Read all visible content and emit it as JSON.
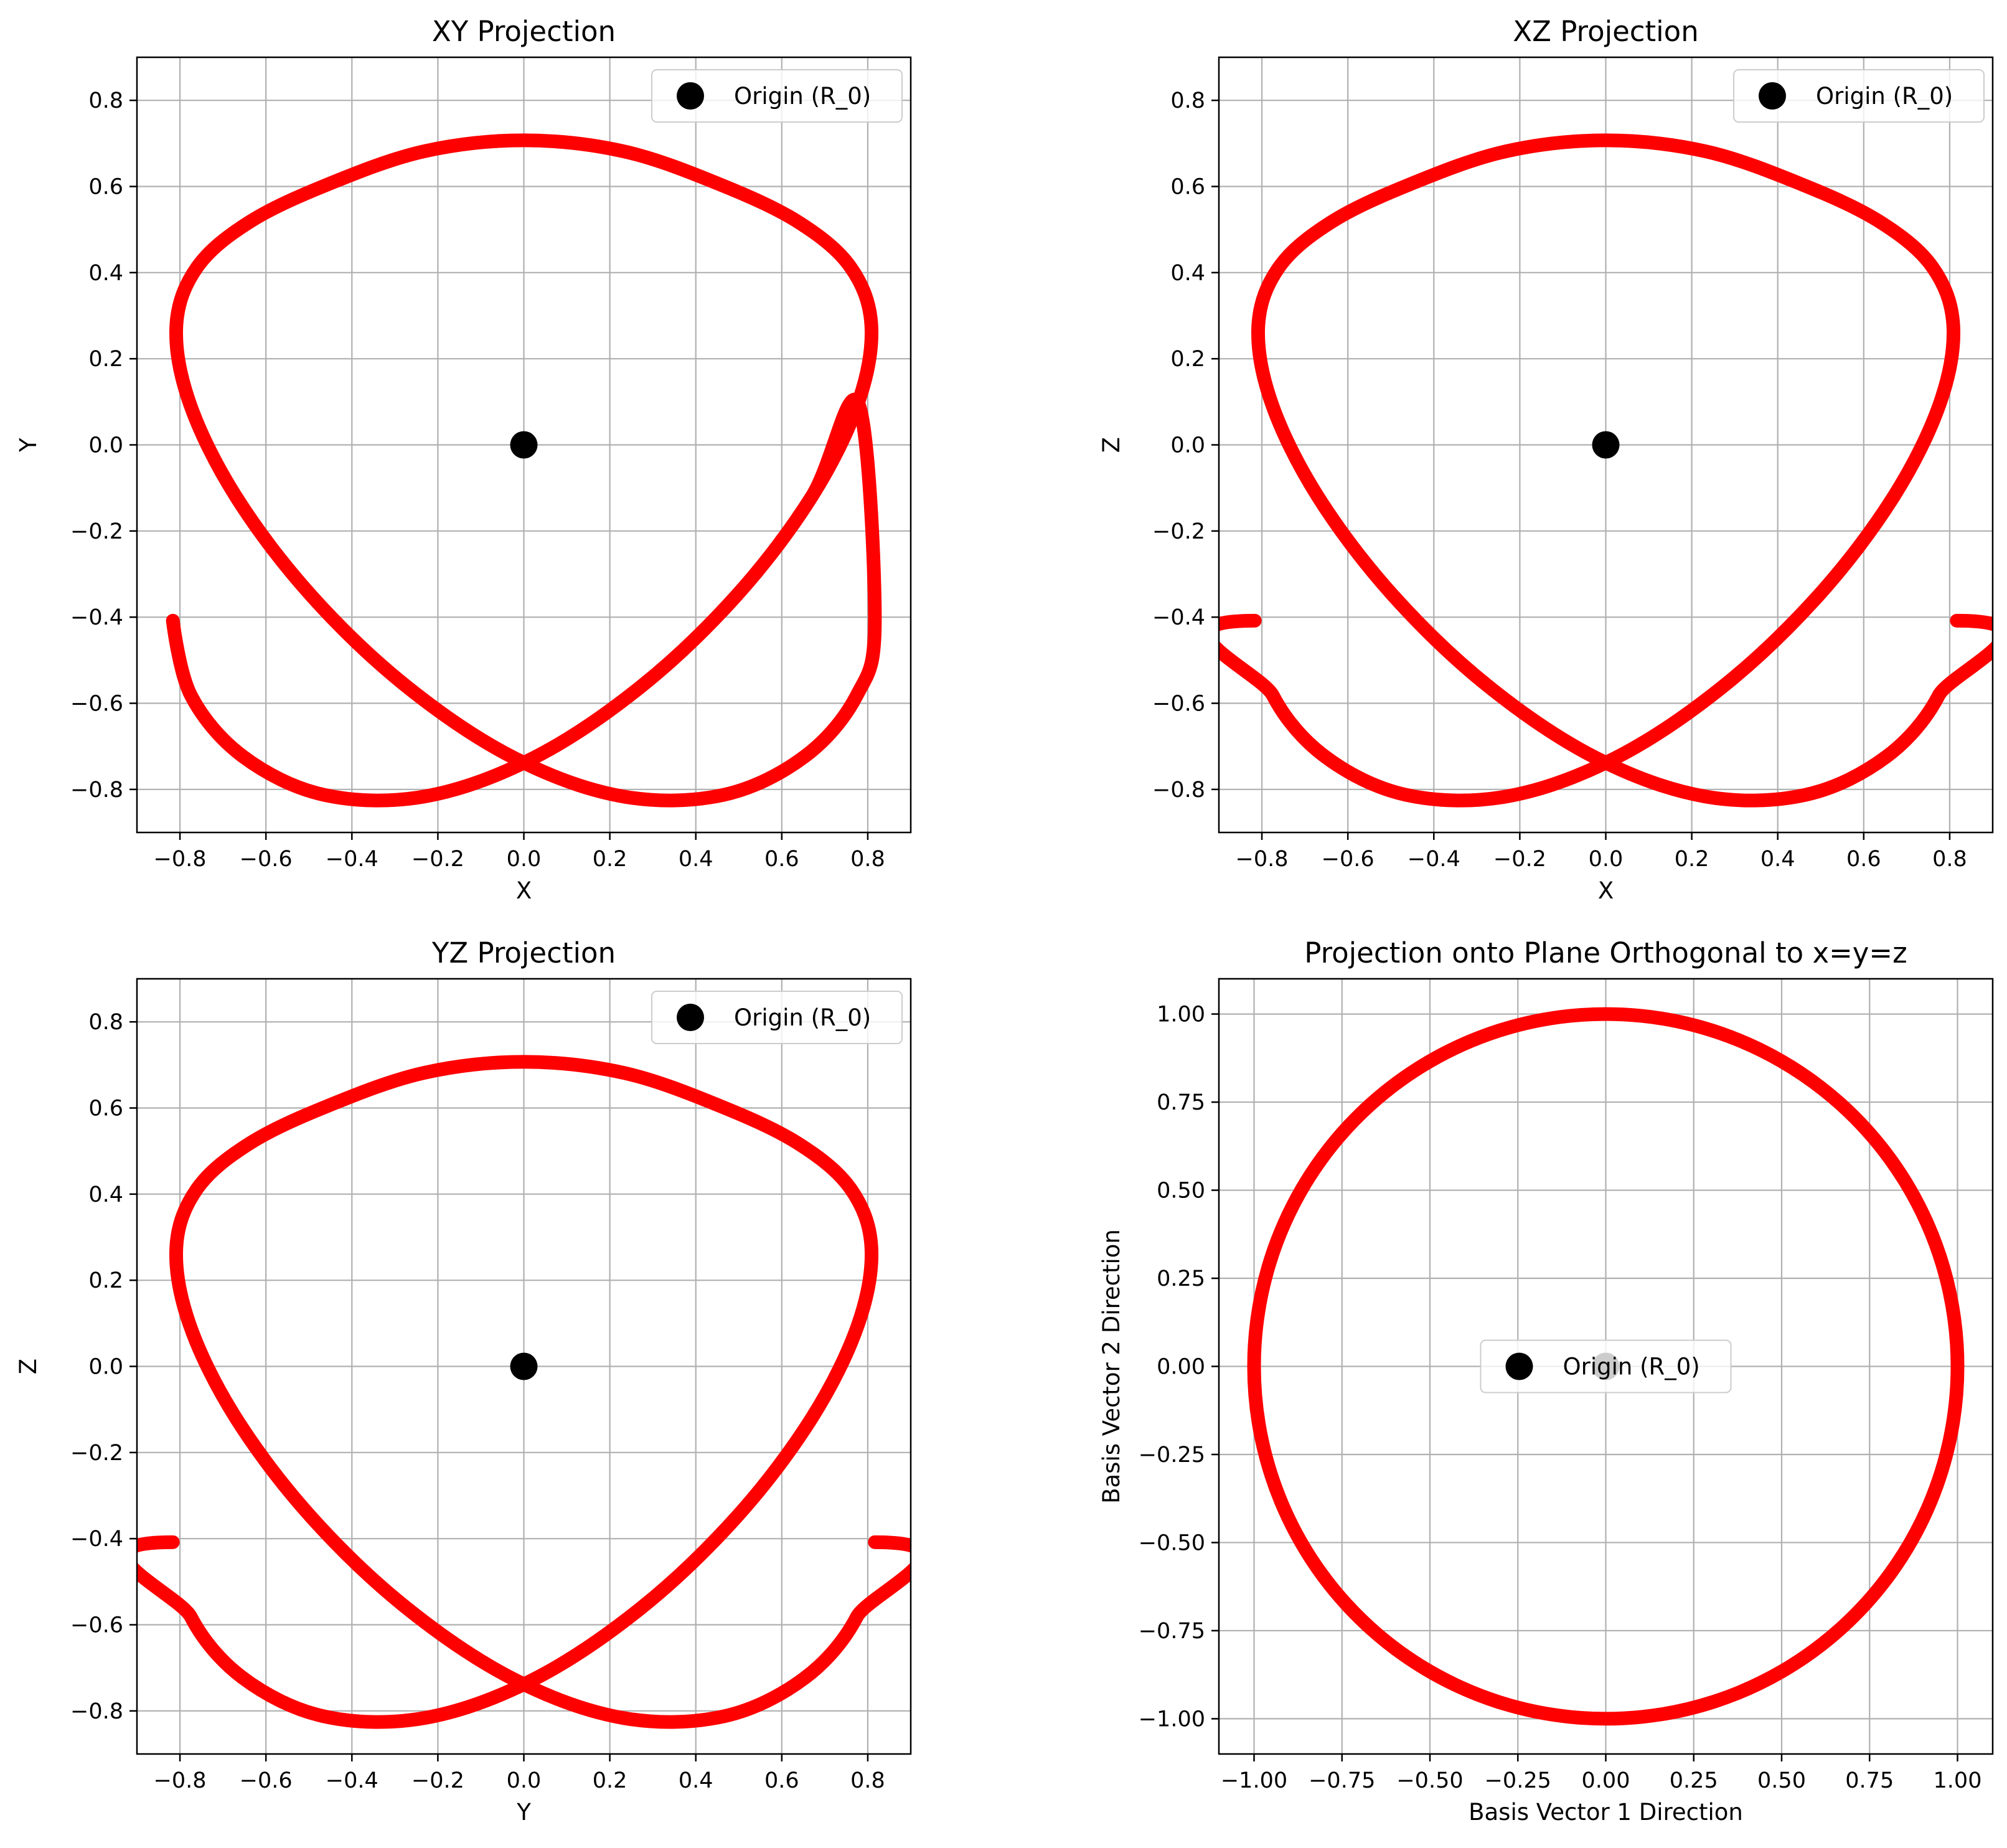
{
  "colors": {
    "curve": "#ff0000",
    "origin": "#000000",
    "grid": "#b0b0b0",
    "axes": "#000000"
  },
  "chart_data": [
    {
      "type": "line",
      "title": "XY Projection",
      "xlabel": "X",
      "ylabel": "Y",
      "xlim": [
        -0.9,
        0.9
      ],
      "ylim": [
        -0.9,
        0.9
      ],
      "grid": true,
      "legend_position": "top-right",
      "xticks": [
        -0.8,
        -0.6,
        -0.4,
        -0.2,
        0.0,
        0.2,
        0.4,
        0.6,
        0.8
      ],
      "yticks": [
        -0.8,
        -0.6,
        -0.4,
        -0.2,
        0.0,
        0.2,
        0.4,
        0.6,
        0.8
      ],
      "xtick_labels": [
        "−0.8",
        "−0.6",
        "−0.4",
        "−0.2",
        "0.0",
        "0.2",
        "0.4",
        "0.6",
        "0.8"
      ],
      "ytick_labels": [
        "−0.8",
        "−0.6",
        "−0.4",
        "−0.2",
        "0.0",
        "0.2",
        "0.4",
        "0.6",
        "0.8"
      ],
      "series": [
        {
          "kind": "line",
          "x": [
            0.8165,
            0.7746,
            0.6533,
            0.4653,
            0.2315,
            -0.0208,
            -0.2716,
            -0.4957,
            -0.6701,
            -0.7776,
            -0.8083,
            -0.7595,
            -0.6374,
            -0.4552,
            -0.2335,
            0.0,
            0.2335,
            0.4552,
            0.6374,
            0.7595,
            0.8083,
            0.7776,
            0.6701,
            0.4957,
            0.2716,
            0.0208,
            -0.2315,
            -0.4653,
            -0.6533,
            -0.7746,
            -0.8165,
            -0.7746,
            -0.6533,
            -0.4653,
            -0.2315,
            0.0208,
            0.2716,
            0.4957,
            0.6701,
            0.7776,
            0.8165
          ],
          "y": [
            -0.4082,
            -0.5815,
            -0.7236,
            -0.8125,
            -0.8165,
            -0.7279,
            -0.5619,
            -0.3488,
            -0.1194,
            0.0975,
            0.2775,
            0.4133,
            0.5181,
            0.6052,
            0.6813,
            0.7071,
            0.6813,
            0.6052,
            0.5181,
            0.4133,
            0.2775,
            0.0975,
            -0.1194,
            -0.3488,
            -0.5619,
            -0.7279,
            -0.8165,
            -0.8125,
            -0.7236,
            -0.5815,
            -0.4082,
            -0.5815,
            -0.7236,
            -0.8125,
            -0.8165,
            -0.7279,
            -0.5619,
            -0.3488,
            -0.1194,
            0.0975,
            -0.4082
          ]
        },
        {
          "kind": "point",
          "name": "Origin (R_0)",
          "x": [
            0.0
          ],
          "y": [
            0.0
          ]
        }
      ]
    },
    {
      "type": "line",
      "title": "XZ Projection",
      "xlabel": "X",
      "ylabel": "Z",
      "xlim": [
        -0.9,
        0.9
      ],
      "ylim": [
        -0.9,
        0.9
      ],
      "grid": true,
      "legend_position": "top-right",
      "xticks": [
        -0.8,
        -0.6,
        -0.4,
        -0.2,
        0.0,
        0.2,
        0.4,
        0.6,
        0.8
      ],
      "yticks": [
        -0.8,
        -0.6,
        -0.4,
        -0.2,
        0.0,
        0.2,
        0.4,
        0.6,
        0.8
      ],
      "xtick_labels": [
        "−0.8",
        "−0.6",
        "−0.4",
        "−0.2",
        "0.0",
        "0.2",
        "0.4",
        "0.6",
        "0.8"
      ],
      "ytick_labels": [
        "−0.8",
        "−0.6",
        "−0.4",
        "−0.2",
        "0.0",
        "0.2",
        "0.4",
        "0.6",
        "0.8"
      ],
      "series": [
        {
          "kind": "line",
          "x": [
            0.8165,
            0.7746,
            0.6533,
            0.4653,
            0.2315,
            -0.0208,
            -0.2716,
            -0.4957,
            -0.6701,
            -0.7776,
            -0.8083,
            -0.7595,
            -0.6374,
            -0.4552,
            -0.2335,
            0.0,
            0.2335,
            0.4552,
            0.6374,
            0.7595,
            0.8083,
            0.7776,
            0.6701,
            0.4957,
            0.2716,
            0.0208,
            -0.2315,
            -0.4653,
            -0.6533,
            -0.7746,
            -0.8165
          ],
          "y": [
            -0.4082,
            -0.5815,
            -0.7236,
            -0.8125,
            -0.8165,
            -0.7279,
            -0.5619,
            -0.3488,
            -0.1194,
            0.0975,
            0.2775,
            0.4133,
            0.5181,
            0.6052,
            0.6813,
            0.7071,
            0.6813,
            0.6052,
            0.5181,
            0.4133,
            0.2775,
            0.0975,
            -0.1194,
            -0.3488,
            -0.5619,
            -0.7279,
            -0.8165,
            -0.8125,
            -0.7236,
            -0.5815,
            -0.4082
          ]
        },
        {
          "kind": "point",
          "name": "Origin (R_0)",
          "x": [
            0.0
          ],
          "y": [
            0.0
          ]
        }
      ]
    },
    {
      "type": "line",
      "title": "YZ Projection",
      "xlabel": "Y",
      "ylabel": "Z",
      "xlim": [
        -0.9,
        0.9
      ],
      "ylim": [
        -0.9,
        0.9
      ],
      "grid": true,
      "legend_position": "top-right",
      "xticks": [
        -0.8,
        -0.6,
        -0.4,
        -0.2,
        0.0,
        0.2,
        0.4,
        0.6,
        0.8
      ],
      "yticks": [
        -0.8,
        -0.6,
        -0.4,
        -0.2,
        0.0,
        0.2,
        0.4,
        0.6,
        0.8
      ],
      "xtick_labels": [
        "−0.8",
        "−0.6",
        "−0.4",
        "−0.2",
        "0.0",
        "0.2",
        "0.4",
        "0.6",
        "0.8"
      ],
      "ytick_labels": [
        "−0.8",
        "−0.6",
        "−0.4",
        "−0.2",
        "0.0",
        "0.2",
        "0.4",
        "0.6",
        "0.8"
      ],
      "series": [
        {
          "kind": "line",
          "x": [
            0.8165,
            0.7746,
            0.6533,
            0.4653,
            0.2315,
            -0.0208,
            -0.2716,
            -0.4957,
            -0.6701,
            -0.7776,
            -0.8083,
            -0.7595,
            -0.6374,
            -0.4552,
            -0.2335,
            0.0,
            0.2335,
            0.4552,
            0.6374,
            0.7595,
            0.8083,
            0.7776,
            0.6701,
            0.4957,
            0.2716,
            0.0208,
            -0.2315,
            -0.4653,
            -0.6533,
            -0.7746,
            -0.8165
          ],
          "y": [
            -0.4082,
            -0.5815,
            -0.7236,
            -0.8125,
            -0.8165,
            -0.7279,
            -0.5619,
            -0.3488,
            -0.1194,
            0.0975,
            0.2775,
            0.4133,
            0.5181,
            0.6052,
            0.6813,
            0.7071,
            0.6813,
            0.6052,
            0.5181,
            0.4133,
            0.2775,
            0.0975,
            -0.1194,
            -0.3488,
            -0.5619,
            -0.7279,
            -0.8165,
            -0.8125,
            -0.7236,
            -0.5815,
            -0.4082
          ]
        },
        {
          "kind": "point",
          "name": "Origin (R_0)",
          "x": [
            0.0
          ],
          "y": [
            0.0
          ]
        }
      ]
    },
    {
      "type": "line",
      "title": "Projection onto Plane Orthogonal to x=y=z",
      "xlabel": "Basis Vector 1 Direction",
      "ylabel": "Basis Vector 2 Direction",
      "xlim": [
        -1.1,
        1.1
      ],
      "ylim": [
        -1.1,
        1.1
      ],
      "grid": true,
      "legend_position": "center",
      "xticks": [
        -1.0,
        -0.75,
        -0.5,
        -0.25,
        0.0,
        0.25,
        0.5,
        0.75,
        1.0
      ],
      "yticks": [
        -1.0,
        -0.75,
        -0.5,
        -0.25,
        0.0,
        0.25,
        0.5,
        0.75,
        1.0
      ],
      "xtick_labels": [
        "−1.00",
        "−0.75",
        "−0.50",
        "−0.25",
        "0.00",
        "0.25",
        "0.50",
        "0.75",
        "1.00"
      ],
      "ytick_labels": [
        "−1.00",
        "−0.75",
        "−0.50",
        "−0.25",
        "0.00",
        "0.25",
        "0.50",
        "0.75",
        "1.00"
      ],
      "series": [
        {
          "kind": "line",
          "x": [
            1.0,
            0.9781,
            0.9135,
            0.809,
            0.6691,
            0.5,
            0.309,
            0.1045,
            -0.1045,
            -0.309,
            -0.5,
            -0.6691,
            -0.809,
            -0.9135,
            -0.9781,
            -1.0,
            -0.9781,
            -0.9135,
            -0.809,
            -0.6691,
            -0.5,
            -0.309,
            -0.1045,
            0.1045,
            0.309,
            0.5,
            0.6691,
            0.809,
            0.9135,
            0.9781,
            1.0
          ],
          "y": [
            0.0,
            0.2079,
            0.4067,
            0.5878,
            0.7431,
            0.866,
            0.9511,
            0.9945,
            0.9945,
            0.9511,
            0.866,
            0.7431,
            0.5878,
            0.4067,
            0.2079,
            0.0,
            -0.2079,
            -0.4067,
            -0.5878,
            -0.7431,
            -0.866,
            -0.9511,
            -0.9945,
            -0.9945,
            -0.9511,
            -0.866,
            -0.7431,
            -0.5878,
            -0.4067,
            -0.2079,
            0.0
          ]
        },
        {
          "kind": "point",
          "name": "Origin (R_0)",
          "x": [
            0.0
          ],
          "y": [
            0.0
          ]
        }
      ]
    }
  ]
}
